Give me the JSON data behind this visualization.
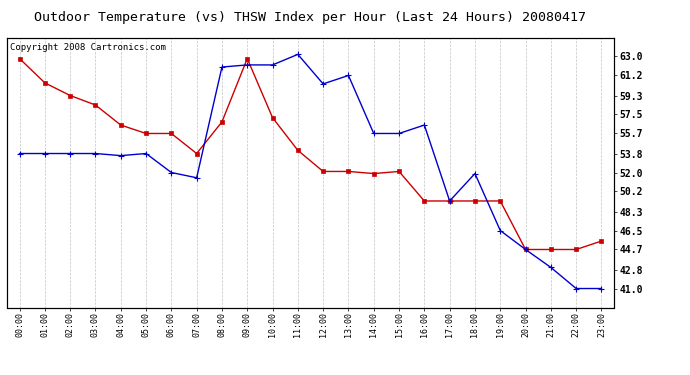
{
  "title": "Outdoor Temperature (vs) THSW Index per Hour (Last 24 Hours) 20080417",
  "copyright": "Copyright 2008 Cartronics.com",
  "hours": [
    "00:00",
    "01:00",
    "02:00",
    "03:00",
    "04:00",
    "05:00",
    "06:00",
    "07:00",
    "08:00",
    "09:00",
    "10:00",
    "11:00",
    "12:00",
    "13:00",
    "14:00",
    "15:00",
    "16:00",
    "17:00",
    "18:00",
    "19:00",
    "20:00",
    "21:00",
    "22:00",
    "23:00"
  ],
  "red_data": [
    62.8,
    60.5,
    59.3,
    58.4,
    56.5,
    55.7,
    55.7,
    53.8,
    56.8,
    62.8,
    57.2,
    54.1,
    52.1,
    52.1,
    51.9,
    52.1,
    49.3,
    49.3,
    49.3,
    49.3,
    44.7,
    44.7,
    44.7,
    45.5
  ],
  "blue_data": [
    53.8,
    53.8,
    53.8,
    53.8,
    53.6,
    53.8,
    52.0,
    51.5,
    62.0,
    62.2,
    62.2,
    63.2,
    60.4,
    61.2,
    55.7,
    55.7,
    56.5,
    49.3,
    51.9,
    46.5,
    44.7,
    43.0,
    41.0,
    41.0
  ],
  "ylim_min": 39.2,
  "ylim_max": 64.8,
  "yticks": [
    41.0,
    42.8,
    44.7,
    46.5,
    48.3,
    50.2,
    52.0,
    53.8,
    55.7,
    57.5,
    59.3,
    61.2,
    63.0
  ],
  "bg_color": "#ffffff",
  "plot_bg_color": "#ffffff",
  "grid_color": "#aaaaaa",
  "red_color": "#cc0000",
  "blue_color": "#0000cc",
  "title_fontsize": 9.5,
  "copyright_fontsize": 6.5
}
